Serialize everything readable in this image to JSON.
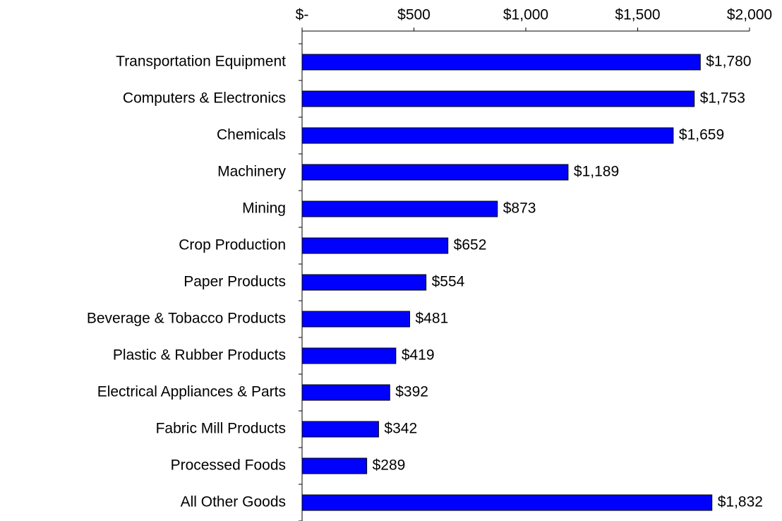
{
  "chart_data": {
    "type": "bar",
    "orientation": "horizontal",
    "categories": [
      "Transportation Equipment",
      "Computers & Electronics",
      "Chemicals",
      "Machinery",
      "Mining",
      "Crop Production",
      "Paper Products",
      "Beverage & Tobacco Products",
      "Plastic & Rubber Products",
      "Electrical Appliances & Parts",
      "Fabric Mill Products",
      "Processed Foods",
      "All Other Goods"
    ],
    "values": [
      1780,
      1753,
      1659,
      1189,
      873,
      652,
      554,
      481,
      419,
      392,
      342,
      289,
      1832
    ],
    "value_labels": [
      "$1,780",
      "$1,753",
      "$1,659",
      "$1,189",
      "$873",
      "$652",
      "$554",
      "$481",
      "$419",
      "$392",
      "$342",
      "$289",
      "$1,832"
    ],
    "color": "#0000ff",
    "xlim": [
      0,
      2000
    ],
    "xticks": [
      {
        "value": 0,
        "label": "$-"
      },
      {
        "value": 500,
        "label": "$500"
      },
      {
        "value": 1000,
        "label": "$1,000"
      },
      {
        "value": 1500,
        "label": "$1,500"
      },
      {
        "value": 2000,
        "label": "$2,000"
      }
    ],
    "grid": false
  }
}
